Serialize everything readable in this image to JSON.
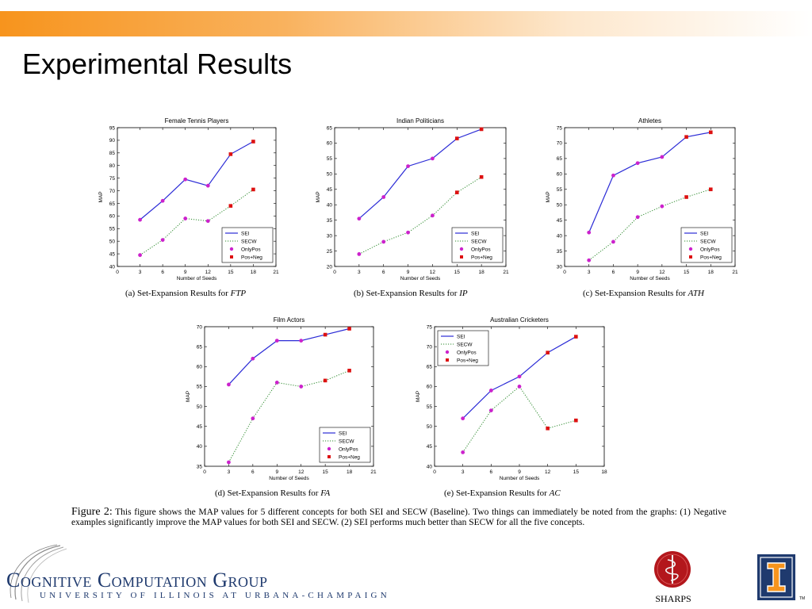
{
  "slide": {
    "title": "Experimental Results"
  },
  "colors": {
    "sei": "#2b2bd6",
    "secw": "#2e8b2e",
    "onlypos": "#cc22cc",
    "posneg": "#dd1111",
    "brand_orange": "#f7941d",
    "brand_blue": "#1f3a6e"
  },
  "legend_labels": [
    "SEI",
    "SECW",
    "OnlyPos",
    "Pos+Neg"
  ],
  "chart_data": [
    {
      "type": "line",
      "title": "Female Tennis Players",
      "caption": "(a) Set-Expansion Results for ",
      "caption_em": "FTP",
      "xlabel": "Number of Seeds",
      "ylabel": "MAP",
      "xlim": [
        0,
        21
      ],
      "ylim": [
        40,
        95
      ],
      "xticks": [
        0,
        3,
        6,
        9,
        12,
        15,
        18,
        21
      ],
      "yticks": [
        40,
        45,
        50,
        55,
        60,
        65,
        70,
        75,
        80,
        85,
        90,
        95
      ],
      "legend": "bottom-right",
      "series": [
        {
          "name": "SEI",
          "x": [
            3,
            6,
            9,
            12,
            15,
            18
          ],
          "values": [
            58.5,
            66,
            74.5,
            72,
            84.5,
            89.5
          ]
        },
        {
          "name": "SECW",
          "x": [
            3,
            6,
            9,
            12,
            15,
            18
          ],
          "values": [
            44.5,
            50.5,
            59,
            58,
            64,
            70.5
          ]
        }
      ],
      "negative_from_index": 4
    },
    {
      "type": "line",
      "title": "Indian Politicians",
      "caption": "(b) Set-Expansion Results for ",
      "caption_em": "IP",
      "xlabel": "Number of Seeds",
      "ylabel": "MAP",
      "xlim": [
        0,
        21
      ],
      "ylim": [
        20,
        65
      ],
      "xticks": [
        0,
        3,
        6,
        9,
        12,
        15,
        18,
        21
      ],
      "yticks": [
        20,
        25,
        30,
        35,
        40,
        45,
        50,
        55,
        60,
        65
      ],
      "legend": "bottom-right",
      "series": [
        {
          "name": "SEI",
          "x": [
            3,
            6,
            9,
            12,
            15,
            18
          ],
          "values": [
            35.5,
            42.5,
            52.5,
            55,
            61.5,
            64.5
          ]
        },
        {
          "name": "SECW",
          "x": [
            3,
            6,
            9,
            12,
            15,
            18
          ],
          "values": [
            24,
            28,
            31,
            36.5,
            44,
            49
          ]
        }
      ],
      "negative_from_index": 4
    },
    {
      "type": "line",
      "title": "Athletes",
      "caption": "(c) Set-Expansion Results for ",
      "caption_em": "ATH",
      "xlabel": "Number of Seeds",
      "ylabel": "MAP",
      "xlim": [
        0,
        21
      ],
      "ylim": [
        30,
        75
      ],
      "xticks": [
        0,
        3,
        6,
        9,
        12,
        15,
        18,
        21
      ],
      "yticks": [
        30,
        35,
        40,
        45,
        50,
        55,
        60,
        65,
        70,
        75
      ],
      "legend": "bottom-right",
      "series": [
        {
          "name": "SEI",
          "x": [
            3,
            6,
            9,
            12,
            15,
            18
          ],
          "values": [
            41,
            59.5,
            63.5,
            65.5,
            72,
            73.5
          ]
        },
        {
          "name": "SECW",
          "x": [
            3,
            6,
            9,
            12,
            15,
            18
          ],
          "values": [
            32,
            38,
            46,
            49.5,
            52.5,
            55
          ]
        }
      ],
      "negative_from_index": 4
    },
    {
      "type": "line",
      "title": "Film Actors",
      "caption": "(d) Set-Expansion Results for ",
      "caption_em": "FA",
      "xlabel": "Number of Seeds",
      "ylabel": "MAP",
      "xlim": [
        0,
        21
      ],
      "ylim": [
        35,
        70
      ],
      "xticks": [
        0,
        3,
        6,
        9,
        12,
        15,
        18,
        21
      ],
      "yticks": [
        35,
        40,
        45,
        50,
        55,
        60,
        65,
        70
      ],
      "legend": "bottom-right",
      "series": [
        {
          "name": "SEI",
          "x": [
            3,
            6,
            9,
            12,
            15,
            18
          ],
          "values": [
            55.5,
            62,
            66.5,
            66.5,
            68,
            69.5
          ]
        },
        {
          "name": "SECW",
          "x": [
            3,
            6,
            9,
            12,
            15,
            18
          ],
          "values": [
            36,
            47,
            56,
            55,
            56.5,
            59
          ]
        }
      ],
      "negative_from_index": 4
    },
    {
      "type": "line",
      "title": "Australian Cricketers",
      "caption": "(e) Set-Expansion Results for ",
      "caption_em": "AC",
      "xlabel": "Number of Seeds",
      "ylabel": "MAP",
      "xlim": [
        0,
        18
      ],
      "ylim": [
        40,
        75
      ],
      "xticks": [
        0,
        3,
        6,
        9,
        12,
        15,
        18
      ],
      "yticks": [
        40,
        45,
        50,
        55,
        60,
        65,
        70,
        75
      ],
      "legend": "top-left",
      "series": [
        {
          "name": "SEI",
          "x": [
            3,
            6,
            9,
            12,
            15
          ],
          "values": [
            52,
            59,
            62.5,
            68.5,
            72.5
          ]
        },
        {
          "name": "SECW",
          "x": [
            3,
            6,
            9,
            12,
            15
          ],
          "values": [
            43.5,
            54,
            60,
            49.5,
            51.5
          ]
        }
      ],
      "negative_from_index": 3
    }
  ],
  "figure_caption": {
    "label": "Figure 2:",
    "text": " This figure shows the MAP values for 5 different concepts for both SEI and SECW (Baseline). Two things can immediately be noted from the graphs: (1) Negative examples significantly improve the MAP values for both SEI and SECW. (2) SEI performs much better than SECW for all the five concepts."
  },
  "footer": {
    "group_name": "Cognitive Computation Group",
    "university": "UNIVERSITY OF ILLINOIS AT URBANA-CHAMPAIGN",
    "sharps_label": "SHARPS",
    "illinois_tm": "TM"
  }
}
